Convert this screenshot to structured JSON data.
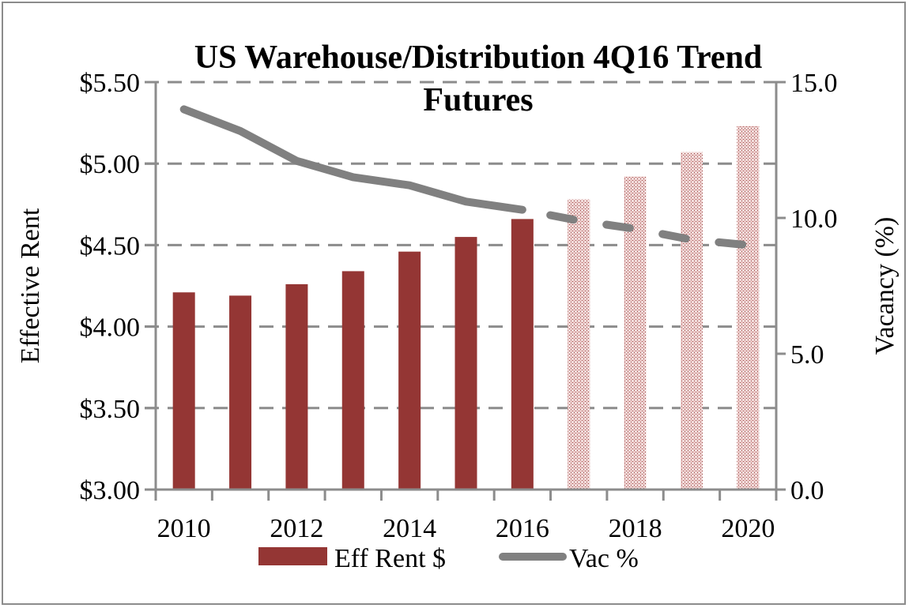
{
  "chart_data": {
    "type": "bar",
    "title_line1": "US Warehouse/Distribution 4Q16 Trend",
    "title_line2": "Futures",
    "xlabel": "",
    "ylabel": "Effective Rent",
    "y2label": "Vacancy (%)",
    "categories": [
      "2010",
      "2011",
      "2012",
      "2013",
      "2014",
      "2015",
      "2016",
      "2017",
      "2018",
      "2019",
      "2020"
    ],
    "x_tick_labels": [
      "2010",
      "2012",
      "2014",
      "2016",
      "2018",
      "2020"
    ],
    "ylim": [
      3.0,
      5.5
    ],
    "y_ticks": [
      "$3.00",
      "$3.50",
      "$4.00",
      "$4.50",
      "$5.00",
      "$5.50"
    ],
    "y_tick_values": [
      3.0,
      3.5,
      4.0,
      4.5,
      5.0,
      5.5
    ],
    "y2lim": [
      0.0,
      15.0
    ],
    "y2_ticks": [
      "0.0",
      "5.0",
      "10.0",
      "15.0"
    ],
    "y2_tick_values": [
      0,
      5,
      10,
      15
    ],
    "grid": "horizontal dashed",
    "forecast_start": "2017",
    "series": [
      {
        "name": "Eff Rent $",
        "type": "bar",
        "axis": "left",
        "color": "#943634",
        "forecast_color": "#e6b8b7",
        "values": [
          4.21,
          4.19,
          4.26,
          4.34,
          4.46,
          4.55,
          4.66,
          4.78,
          4.92,
          5.07,
          5.23
        ]
      },
      {
        "name": "Vac %",
        "type": "line",
        "axis": "right",
        "color": "#808080",
        "values": [
          14.0,
          13.2,
          12.1,
          11.5,
          11.2,
          10.6,
          10.3,
          9.9,
          9.6,
          9.2,
          9.0
        ]
      }
    ],
    "legend": {
      "position": "bottom",
      "items": [
        "Eff Rent $",
        "Vac %"
      ]
    }
  }
}
